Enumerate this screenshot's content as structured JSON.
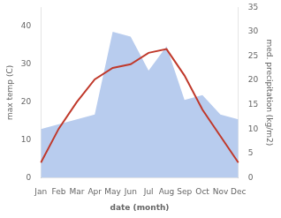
{
  "chart_data": {
    "type": "line",
    "xlabel": "date (month)",
    "ylabel": "max temp (C)",
    "y2label": "med. precipitation (kg/m2)",
    "categories": [
      "Jan",
      "Feb",
      "Mar",
      "Apr",
      "May",
      "Jun",
      "Jul",
      "Aug",
      "Sep",
      "Oct",
      "Nov",
      "Dec"
    ],
    "series": [
      {
        "type": "area",
        "axis": "y2",
        "color": "#b8ccee",
        "values": [
          10,
          11,
          12,
          13,
          30,
          29,
          22,
          27,
          16,
          17,
          13,
          12
        ]
      },
      {
        "type": "line",
        "color": "#c0392b",
        "values": [
          4,
          13,
          20,
          26,
          29,
          30,
          33,
          34,
          27,
          18,
          11,
          4
        ]
      }
    ],
    "ylim": [
      0,
      45
    ],
    "yticks": [
      0,
      10,
      20,
      30,
      40
    ],
    "y2lim": [
      0,
      35
    ],
    "y2ticks": [
      0,
      5,
      10,
      15,
      20,
      25,
      30,
      35
    ],
    "grid": false
  }
}
